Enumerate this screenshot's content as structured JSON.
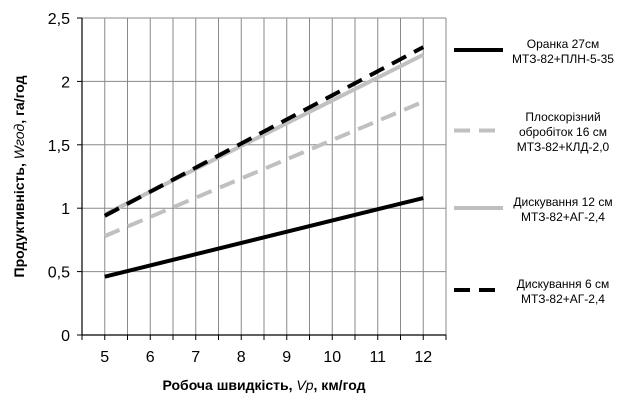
{
  "chart_data": {
    "type": "line",
    "xlabel_parts": [
      "Робоча швидкість, ",
      "Vp",
      ", км/год"
    ],
    "ylabel_parts": [
      "Продуктивність, ",
      "Wгод",
      ", га/год"
    ],
    "xlim": [
      4.5,
      12.5
    ],
    "ylim": [
      0,
      2.5
    ],
    "x_ticks": [
      "5",
      "6",
      "7",
      "8",
      "9",
      "10",
      "11",
      "12"
    ],
    "y_ticks": [
      "0",
      "0,5",
      "1",
      "1,5",
      "2",
      "2,5"
    ],
    "grid": true,
    "legend_position": "right",
    "x": [
      5,
      12
    ],
    "series": [
      {
        "name_lines": [
          "Оранка 27см",
          "МТЗ-82+ПЛН-5-35"
        ],
        "values": [
          0.46,
          1.08
        ],
        "color": "#000000",
        "dash": "solid"
      },
      {
        "name_lines": [
          "Плоскорізний",
          "обробіток 16 см",
          "МТЗ-82+КЛД-2,0"
        ],
        "values": [
          0.78,
          1.84
        ],
        "color": "#c0c0c0",
        "dash": "dashed"
      },
      {
        "name_lines": [
          "Дискування  12 см",
          "МТЗ-82+АГ-2,4"
        ],
        "values": [
          0.95,
          2.21
        ],
        "color": "#c0c0c0",
        "dash": "solid"
      },
      {
        "name_lines": [
          "Дискування  6 см",
          "МТЗ-82+АГ-2,4"
        ],
        "values": [
          0.94,
          2.27
        ],
        "color": "#000000",
        "dash": "dashed"
      }
    ]
  }
}
